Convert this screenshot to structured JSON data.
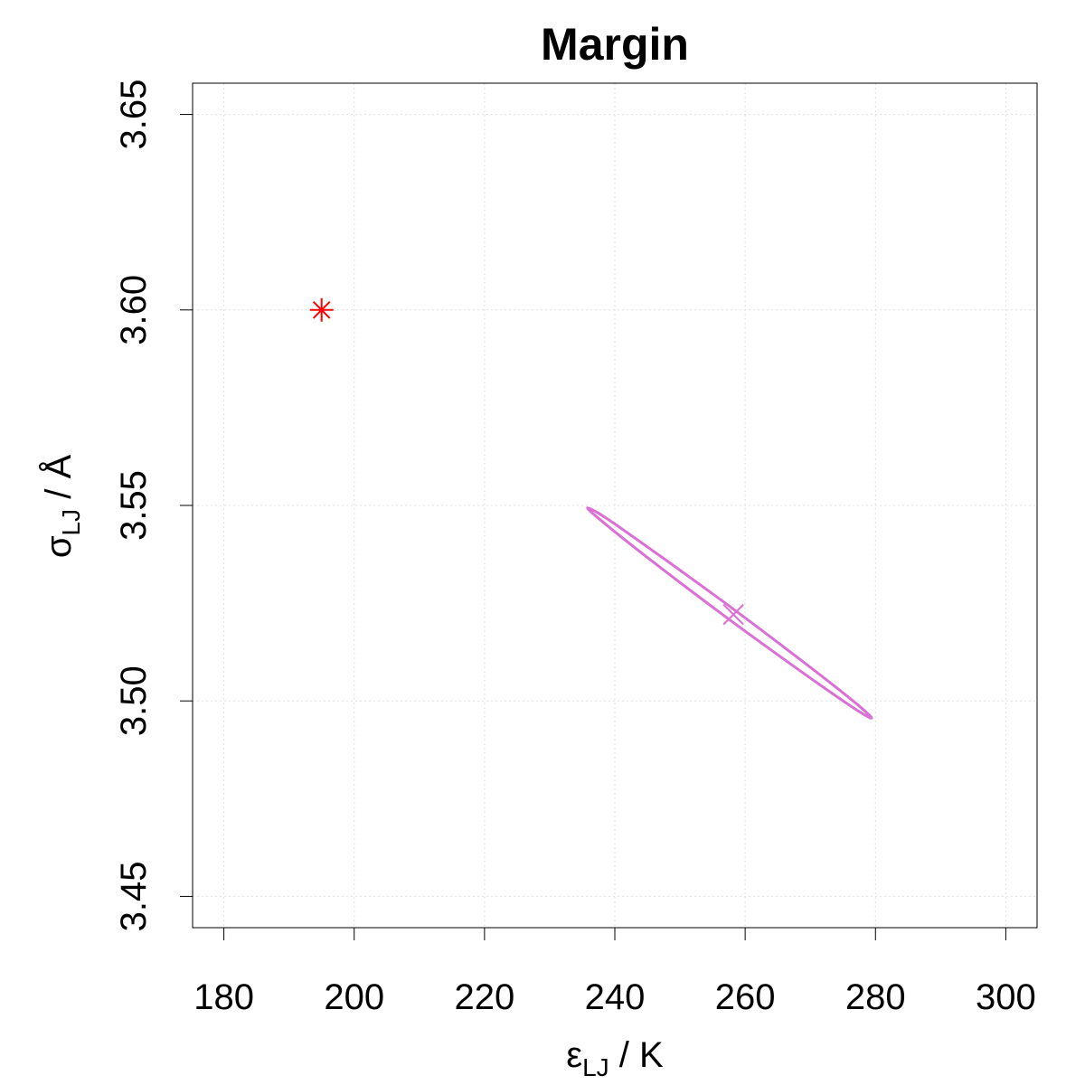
{
  "chart_data": {
    "type": "scatter",
    "title": "Margin",
    "xlabel": {
      "symbol": "ε",
      "subscript": "LJ",
      "unit": " / K"
    },
    "ylabel": {
      "symbol": "σ",
      "subscript": "LJ",
      "unit": " / Å"
    },
    "xlim": [
      175.2,
      304.8
    ],
    "ylim": [
      3.442,
      3.658
    ],
    "xticks": [
      180,
      200,
      220,
      240,
      260,
      280,
      300
    ],
    "yticks": [
      {
        "value": 3.45,
        "label": "3.45"
      },
      {
        "value": 3.5,
        "label": "3.50"
      },
      {
        "value": 3.55,
        "label": "3.55"
      },
      {
        "value": 3.6,
        "label": "3.60"
      },
      {
        "value": 3.65,
        "label": "3.65"
      }
    ],
    "grid": true,
    "series": [
      {
        "type": "point",
        "marker": "asterisk",
        "color": "#ff0000",
        "x": [
          195
        ],
        "y": [
          3.6
        ]
      },
      {
        "type": "point",
        "marker": "cross",
        "color": "#da70d6",
        "x": [
          258.2
        ],
        "y": [
          3.5221
        ]
      },
      {
        "type": "line",
        "color": "#da70d6",
        "x": [
          279.4,
          276.2,
          268.1,
          257.1,
          246.3,
          238.5,
          235.8,
          239.0,
          247.1,
          258.1,
          268.9,
          276.7,
          279.4
        ],
        "y": [
          3.4956,
          3.4987,
          3.5081,
          3.5214,
          3.535,
          3.5453,
          3.5494,
          3.5464,
          3.5369,
          3.5236,
          3.51,
          3.4998,
          3.4956
        ]
      }
    ]
  }
}
